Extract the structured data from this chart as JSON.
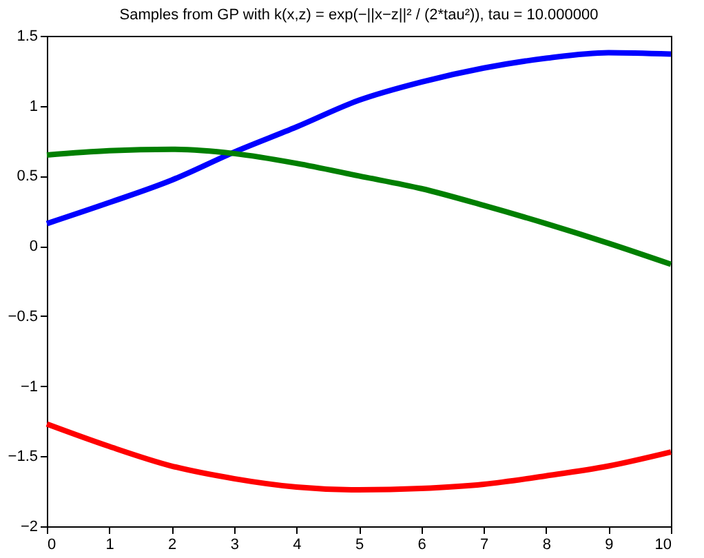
{
  "chart_data": {
    "type": "line",
    "title": "Samples from GP with k(x,z) = exp(−||x−z||² / (2*tau²)), tau = 10.000000",
    "x": [
      0,
      1,
      2,
      3,
      4,
      5,
      6,
      7,
      8,
      9,
      10
    ],
    "series": [
      {
        "color": "#0000ff",
        "values": [
          0.16,
          0.31,
          0.47,
          0.67,
          0.85,
          1.04,
          1.17,
          1.27,
          1.34,
          1.38,
          1.37
        ]
      },
      {
        "color": "#007f00",
        "values": [
          0.65,
          0.68,
          0.69,
          0.66,
          0.59,
          0.5,
          0.41,
          0.29,
          0.16,
          0.02,
          -0.13
        ]
      },
      {
        "color": "#ff0000",
        "values": [
          -1.27,
          -1.43,
          -1.57,
          -1.66,
          -1.72,
          -1.74,
          -1.73,
          -1.7,
          -1.64,
          -1.57,
          -1.47
        ]
      }
    ],
    "xlim": [
      0,
      10
    ],
    "xticks": [
      0,
      1,
      2,
      3,
      4,
      5,
      6,
      7,
      8,
      9,
      10
    ],
    "ylim": [
      -2,
      1.5
    ],
    "yticks": [
      {
        "value": -2,
        "label": "−2"
      },
      {
        "value": -1.5,
        "label": "−1.5"
      },
      {
        "value": -1,
        "label": "−1"
      },
      {
        "value": -0.5,
        "label": "−0.5"
      },
      0,
      0.5,
      1,
      1.5
    ],
    "grid": false,
    "legend": false,
    "marker": "none",
    "line_style": "solid"
  }
}
